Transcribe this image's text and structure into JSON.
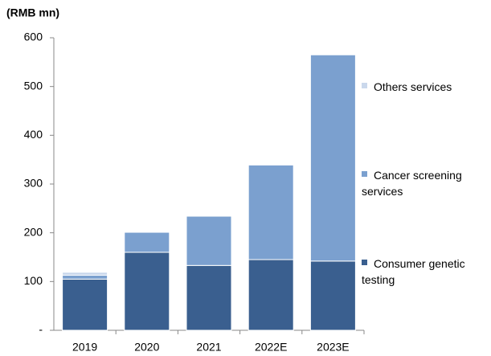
{
  "chart_data": {
    "type": "stacked_bar",
    "title": "(RMB mn)",
    "categories": [
      "2019",
      "2020",
      "2021",
      "2022E",
      "2023E"
    ],
    "series": [
      {
        "name": "Consumer genetic testing",
        "color": "#3a5f8f",
        "values": [
          105,
          160,
          133,
          145,
          142
        ]
      },
      {
        "name": "Cancer screening services",
        "color": "#7ba0cf",
        "values": [
          8,
          41,
          101,
          194,
          423
        ]
      },
      {
        "name": "Others services",
        "color": "#cad8ec",
        "values": [
          6,
          0,
          0,
          0,
          0
        ]
      }
    ],
    "ylim": [
      0,
      600
    ],
    "yticks": [
      {
        "value": 0,
        "label": "-"
      },
      100,
      200,
      300,
      400,
      500,
      600
    ],
    "legend": "right"
  }
}
